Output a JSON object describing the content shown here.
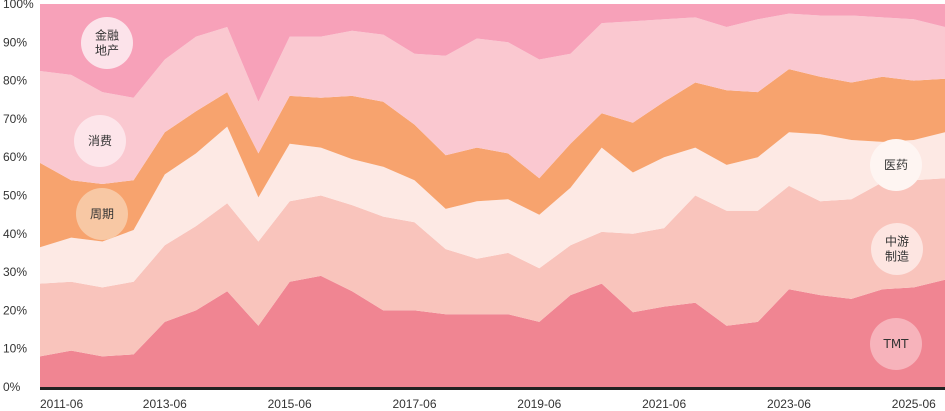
{
  "chart_data": {
    "type": "area",
    "stacked": "percent",
    "ylim": [
      0,
      100
    ],
    "y_ticks": [
      "0%",
      "10%",
      "20%",
      "30%",
      "40%",
      "50%",
      "60%",
      "70%",
      "80%",
      "90%",
      "100%"
    ],
    "x_tick_labels": [
      "2011-06",
      "2013-06",
      "2015-06",
      "2017-06",
      "2019-06",
      "2021-06",
      "2023-06",
      "2025-06"
    ],
    "x": [
      "2011-06",
      "2011-12",
      "2012-06",
      "2012-12",
      "2013-06",
      "2013-12",
      "2014-06",
      "2014-12",
      "2015-06",
      "2015-12",
      "2016-06",
      "2016-12",
      "2017-06",
      "2017-12",
      "2018-06",
      "2018-12",
      "2019-06",
      "2019-12",
      "2020-06",
      "2020-12",
      "2021-06",
      "2021-12",
      "2022-06",
      "2022-12",
      "2023-06",
      "2023-12",
      "2024-06",
      "2024-12",
      "2025-06",
      "2025-12"
    ],
    "series": [
      {
        "name": "TMT",
        "color": "#f08592",
        "values": [
          8,
          9.5,
          8,
          8.5,
          17,
          20,
          25,
          16,
          27.5,
          29,
          25,
          20,
          20,
          19,
          19,
          19,
          17,
          24,
          27,
          19.5,
          21,
          22,
          16,
          17,
          25.5,
          24,
          23,
          25.5,
          26,
          28
        ]
      },
      {
        "name": "中游制造",
        "color": "#f9c4bc",
        "values": [
          19,
          18,
          18,
          19,
          20,
          22,
          23,
          22,
          21,
          21,
          22.5,
          24.5,
          23,
          17,
          14.5,
          16,
          14,
          13,
          13.5,
          20.5,
          20.5,
          28,
          30,
          29,
          27,
          24.5,
          26,
          28,
          28,
          26.5
        ]
      },
      {
        "name": "医药",
        "color": "#fde9e4",
        "values": [
          9.5,
          11.5,
          12,
          13.5,
          18.5,
          19,
          20,
          11.5,
          15,
          12.5,
          12,
          13,
          11,
          10.5,
          15,
          14,
          14,
          15,
          22,
          16,
          18.5,
          12.5,
          12,
          14,
          14,
          17.5,
          15.5,
          10.5,
          10.5,
          12
        ]
      },
      {
        "name": "周期",
        "color": "#f7a36e",
        "values": [
          22,
          15,
          15,
          13,
          11,
          11,
          9,
          11.5,
          12.5,
          13,
          16.5,
          17,
          14.5,
          14,
          14,
          12,
          9.5,
          11.5,
          9,
          13,
          14.5,
          17,
          19.5,
          17,
          16.5,
          15,
          15,
          17,
          15.5,
          14
        ]
      },
      {
        "name": "消费",
        "color": "#fac8d0",
        "values": [
          24,
          27.5,
          24,
          21.5,
          19,
          19.5,
          17,
          13.5,
          15.5,
          16,
          17,
          17.5,
          18.5,
          26,
          28.5,
          29,
          31,
          23.5,
          23.5,
          26.5,
          21.5,
          17,
          16.5,
          19,
          14.5,
          16,
          17.5,
          15.5,
          16,
          13.5
        ]
      },
      {
        "name": "金融地产",
        "color": "#f7a1b9",
        "values": [
          17.5,
          18.5,
          23,
          24.5,
          14.5,
          8.5,
          6,
          25.5,
          8.5,
          8.5,
          7,
          8,
          13,
          13.5,
          10,
          10,
          14.5,
          13,
          5,
          4.5,
          4,
          3.5,
          6,
          4,
          2.5,
          3,
          3,
          3.5,
          4,
          6
        ]
      }
    ],
    "labels": [
      {
        "series": "金融地产",
        "lines": [
          "金融",
          "地产"
        ],
        "bubble": "#fce3ea"
      },
      {
        "series": "消费",
        "lines": [
          "消费"
        ],
        "bubble": "#fde5ea"
      },
      {
        "series": "周期",
        "lines": [
          "周期"
        ],
        "bubble": "#f8c8a4"
      },
      {
        "series": "医药",
        "lines": [
          "医药"
        ],
        "bubble": "#fef5f2"
      },
      {
        "series": "中游制造",
        "lines": [
          "中游",
          "制造"
        ],
        "bubble": "#fde5e1"
      },
      {
        "series": "TMT",
        "lines": [
          "TMT"
        ],
        "bubble": "#f7b3bb"
      }
    ]
  }
}
